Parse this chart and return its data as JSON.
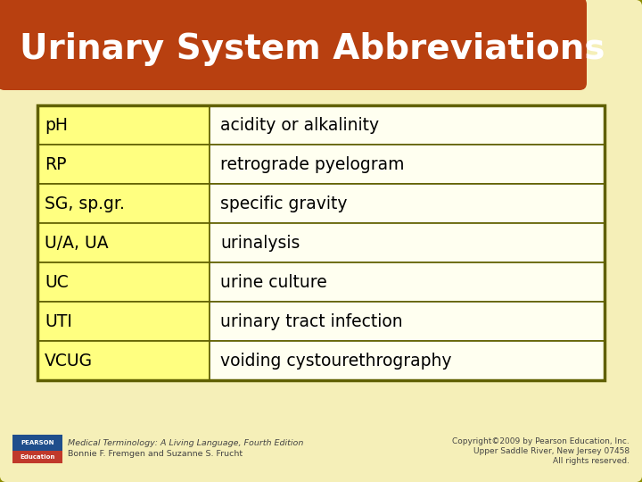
{
  "title": "Urinary System Abbreviations",
  "title_bg_color": "#B84010",
  "title_text_color": "#FFFFFF",
  "bg_color": "#F5EFB8",
  "outer_bg_color": "#E8E0A0",
  "table_rows": [
    [
      "pH",
      "acidity or alkalinity"
    ],
    [
      "RP",
      "retrograde pyelogram"
    ],
    [
      "SG, sp.gr.",
      "specific gravity"
    ],
    [
      "U/A, UA",
      "urinalysis"
    ],
    [
      "UC",
      "urine culture"
    ],
    [
      "UTI",
      "urinary tract infection"
    ],
    [
      "VCUG",
      "voiding cystourethrography"
    ]
  ],
  "col1_bg": "#FFFF80",
  "col2_bg": "#FFFFF0",
  "table_border_color": "#8B8B00",
  "cell_border_color": "#606000",
  "text_color": "#000000",
  "footer_left_line1": "Medical Terminology: A Living Language, Fourth Edition",
  "footer_left_line2": "Bonnie F. Fremgen and Suzanne S. Frucht",
  "footer_right_line1": "Copyright©2009 by Pearson Education, Inc.",
  "footer_right_line2": "Upper Saddle River, New Jersey 07458",
  "footer_right_line3": "All rights reserved.",
  "footer_text_color": "#444444",
  "pearson_blue": "#1F4E8C",
  "pearson_red": "#C0392B"
}
